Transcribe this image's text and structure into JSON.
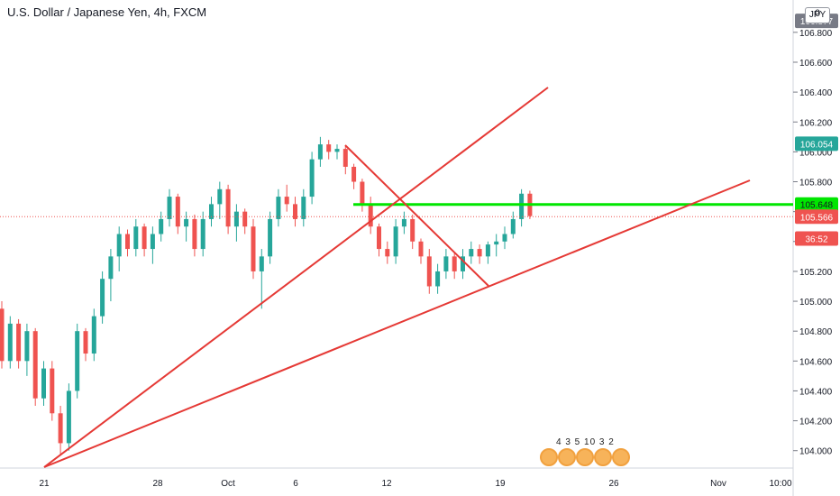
{
  "header": {
    "title": "U.S. Dollar / Japanese Yen, 4h, FXCM",
    "currency": "JPY",
    "axis_zero": "0"
  },
  "colors": {
    "up": "#26a69a",
    "down": "#ef5350",
    "trendline": "#e53935",
    "horizontal_line": "#00e600",
    "last_price": "#ef5350",
    "axis_text": "#131722"
  },
  "badges": {
    "counts": "4 3 5 10 3 2"
  },
  "chart_data": {
    "type": "candlestick",
    "title": "U.S. Dollar / Japanese Yen, 4h, FXCM",
    "x_tick_labels": [
      "21",
      "28",
      "Oct",
      "6",
      "12",
      "19",
      "26",
      "Nov",
      "10:00"
    ],
    "y_ticks": [
      104.0,
      104.2,
      104.4,
      104.6,
      104.8,
      105.0,
      105.2,
      105.4,
      105.6,
      105.8,
      106.0,
      106.2,
      106.4,
      106.6,
      106.8
    ],
    "y_tick_labels": [
      "104.000",
      "104.200",
      "104.400",
      "104.600",
      "104.800",
      "105.000",
      "105.200",
      "105.400",
      "105.600",
      "105.800",
      "106.000",
      "106.200",
      "106.400",
      "106.600",
      "106.800"
    ],
    "ylim": [
      103.95,
      106.95
    ],
    "price_labels": [
      {
        "value": 106.877,
        "text": "106.877",
        "style": "gray"
      },
      {
        "value": 106.054,
        "text": "106.054",
        "style": "teal"
      },
      {
        "value": 105.648,
        "text": "105.648",
        "style": "green"
      },
      {
        "value": 105.566,
        "text": "105.566",
        "style": "red"
      },
      {
        "value": 105.42,
        "text": "36:52",
        "style": "red"
      }
    ],
    "last_price": 105.566,
    "horizontal_level": 105.648,
    "trendlines": [
      {
        "name": "support-rising",
        "from": [
          0,
          103.97
        ],
        "to": [
          156,
          105.88
        ]
      },
      {
        "name": "steep-rising",
        "from": [
          0,
          103.97
        ],
        "to": [
          108,
          106.52
        ]
      },
      {
        "name": "descending",
        "from": [
          62,
          106.1
        ],
        "to": [
          87,
          105.17
        ]
      }
    ],
    "candle_ohlc": [
      [
        104.95,
        105.0,
        104.55,
        104.6
      ],
      [
        104.6,
        104.9,
        104.55,
        104.85
      ],
      [
        104.85,
        104.88,
        104.55,
        104.6
      ],
      [
        104.6,
        104.85,
        104.5,
        104.8
      ],
      [
        104.8,
        104.82,
        104.3,
        104.35
      ],
      [
        104.35,
        104.6,
        104.3,
        104.55
      ],
      [
        104.55,
        104.6,
        104.2,
        104.25
      ],
      [
        104.25,
        104.3,
        103.97,
        104.05
      ],
      [
        104.05,
        104.45,
        104.0,
        104.4
      ],
      [
        104.4,
        104.85,
        104.35,
        104.8
      ],
      [
        104.8,
        104.82,
        104.6,
        104.65
      ],
      [
        104.65,
        104.95,
        104.6,
        104.9
      ],
      [
        104.9,
        105.2,
        104.85,
        105.15
      ],
      [
        105.15,
        105.35,
        105.0,
        105.3
      ],
      [
        105.3,
        105.5,
        105.2,
        105.45
      ],
      [
        105.45,
        105.48,
        105.3,
        105.35
      ],
      [
        105.35,
        105.55,
        105.3,
        105.5
      ],
      [
        105.5,
        105.52,
        105.3,
        105.35
      ],
      [
        105.35,
        105.5,
        105.25,
        105.45
      ],
      [
        105.45,
        105.6,
        105.4,
        105.55
      ],
      [
        105.55,
        105.75,
        105.5,
        105.7
      ],
      [
        105.7,
        105.72,
        105.45,
        105.5
      ],
      [
        105.5,
        105.6,
        105.4,
        105.55
      ],
      [
        105.55,
        105.58,
        105.3,
        105.35
      ],
      [
        105.35,
        105.6,
        105.3,
        105.55
      ],
      [
        105.55,
        105.7,
        105.5,
        105.65
      ],
      [
        105.65,
        105.8,
        105.55,
        105.75
      ],
      [
        105.75,
        105.78,
        105.45,
        105.5
      ],
      [
        105.5,
        105.65,
        105.4,
        105.6
      ],
      [
        105.6,
        105.62,
        105.45,
        105.5
      ],
      [
        105.5,
        105.55,
        105.15,
        105.2
      ],
      [
        105.2,
        105.35,
        104.95,
        105.3
      ],
      [
        105.3,
        105.6,
        105.25,
        105.55
      ],
      [
        105.55,
        105.75,
        105.5,
        105.7
      ],
      [
        105.7,
        105.78,
        105.6,
        105.65
      ],
      [
        105.65,
        105.7,
        105.5,
        105.55
      ],
      [
        105.55,
        105.75,
        105.5,
        105.7
      ],
      [
        105.7,
        106.0,
        105.65,
        105.95
      ],
      [
        105.95,
        106.1,
        105.9,
        106.05
      ],
      [
        106.05,
        106.08,
        105.95,
        106.0
      ],
      [
        106.0,
        106.05,
        105.95,
        106.02
      ],
      [
        106.02,
        106.04,
        105.85,
        105.9
      ],
      [
        105.9,
        105.92,
        105.75,
        105.8
      ],
      [
        105.8,
        105.82,
        105.6,
        105.65
      ],
      [
        105.65,
        105.7,
        105.45,
        105.5
      ],
      [
        105.5,
        105.52,
        105.3,
        105.35
      ],
      [
        105.35,
        105.4,
        105.25,
        105.3
      ],
      [
        105.3,
        105.55,
        105.25,
        105.5
      ],
      [
        105.5,
        105.6,
        105.45,
        105.55
      ],
      [
        105.55,
        105.58,
        105.35,
        105.4
      ],
      [
        105.4,
        105.42,
        105.25,
        105.3
      ],
      [
        105.3,
        105.35,
        105.05,
        105.1
      ],
      [
        105.1,
        105.25,
        105.05,
        105.2
      ],
      [
        105.2,
        105.35,
        105.15,
        105.3
      ],
      [
        105.3,
        105.32,
        105.15,
        105.2
      ],
      [
        105.2,
        105.35,
        105.15,
        105.3
      ],
      [
        105.3,
        105.4,
        105.25,
        105.35
      ],
      [
        105.35,
        105.38,
        105.25,
        105.3
      ],
      [
        105.3,
        105.4,
        105.25,
        105.38
      ],
      [
        105.38,
        105.45,
        105.3,
        105.4
      ],
      [
        105.4,
        105.5,
        105.35,
        105.45
      ],
      [
        105.45,
        105.6,
        105.42,
        105.55
      ],
      [
        105.55,
        105.75,
        105.5,
        105.72
      ],
      [
        105.72,
        105.74,
        105.55,
        105.57
      ]
    ]
  }
}
